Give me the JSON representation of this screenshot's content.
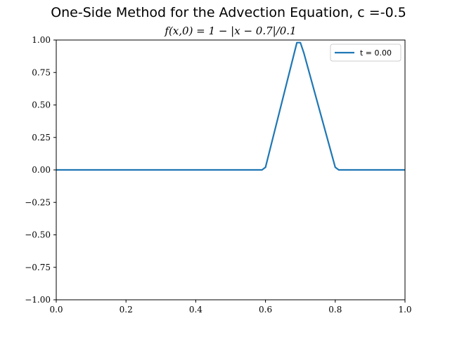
{
  "chart_data": {
    "type": "line",
    "title": "One-Side Method for the Advection Equation, c =-0.5",
    "subtitle": "f(x,0) = 1 − |x − 0.7|/0.1",
    "xlim": [
      0.0,
      1.0
    ],
    "ylim": [
      -1.0,
      1.0
    ],
    "xticks": [
      0.0,
      0.2,
      0.4,
      0.6,
      0.8,
      1.0
    ],
    "xtick_labels": [
      "0.0",
      "0.2",
      "0.4",
      "0.6",
      "0.8",
      "1.0"
    ],
    "yticks": [
      -1.0,
      -0.75,
      -0.5,
      -0.25,
      0.0,
      0.25,
      0.5,
      0.75,
      1.0
    ],
    "ytick_labels": [
      "−1.00",
      "−0.75",
      "−0.50",
      "−0.25",
      "0.00",
      "0.25",
      "0.50",
      "0.75",
      "1.00"
    ],
    "grid": false,
    "legend_position": "top-right",
    "series": [
      {
        "name": "t = 0.00",
        "color": "#1f77b4",
        "x": [
          0.0,
          0.59,
          0.6,
          0.69,
          0.7,
          0.71,
          0.8,
          0.81,
          1.0
        ],
        "y": [
          0.0,
          0.0,
          0.02,
          0.98,
          0.98,
          0.9,
          0.02,
          0.0,
          0.0
        ]
      }
    ]
  }
}
